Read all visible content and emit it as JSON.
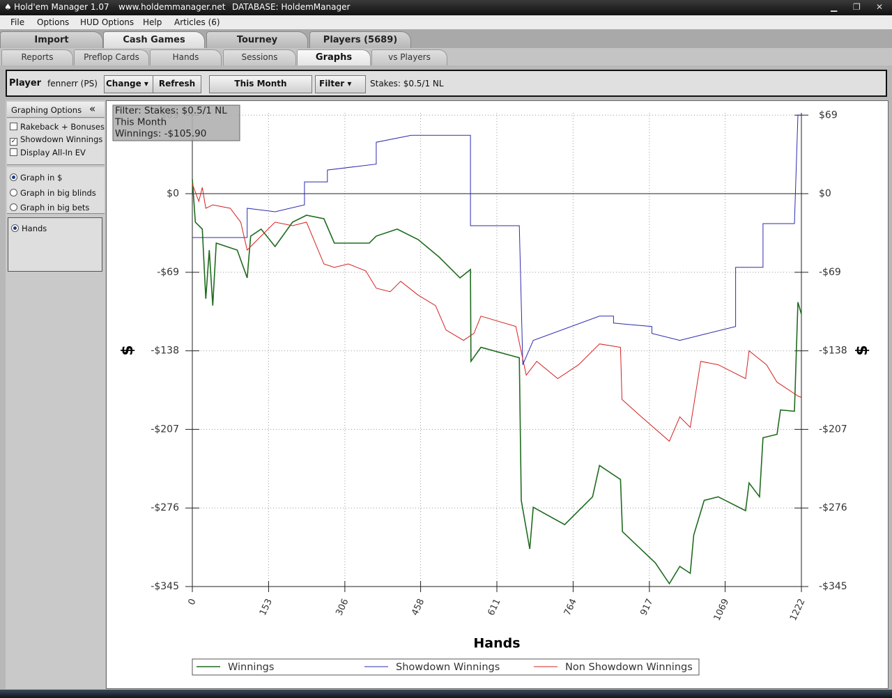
{
  "app": {
    "title": "Hold'em Manager 1.07",
    "website": "www.holdemmanager.net",
    "database": "DATABASE: HoldemManager",
    "menu": [
      "File",
      "Options",
      "HUD Options",
      "Help",
      "Articles (6)"
    ],
    "tabs": [
      "Import",
      "Cash Games",
      "Tourney",
      "Players (5689)"
    ],
    "subtabs": [
      "Reports",
      "Preflop Cards",
      "Hands",
      "Sessions",
      "Graphs",
      "vs Players"
    ],
    "toolbar": {
      "player_label": "Player",
      "player": "fennerr (PS)",
      "change": "Change",
      "refresh": "Refresh",
      "period": "This Month",
      "filter": "Filter",
      "stakes": "Stakes: $0.5/1 NL"
    },
    "sidebar": {
      "title": "Graphing Options",
      "checkboxes": [
        {
          "label": "Rakeback + Bonuses",
          "checked": false
        },
        {
          "label": "Showdown Winnings",
          "checked": true
        },
        {
          "label": "Display All-In EV",
          "checked": false
        }
      ],
      "units": [
        {
          "label": "Graph in $",
          "checked": true
        },
        {
          "label": "Graph in big blinds",
          "checked": false
        },
        {
          "label": "Graph in big bets",
          "checked": false
        }
      ],
      "axis": [
        {
          "label": "Hands",
          "checked": true
        }
      ]
    }
  },
  "chart_data": {
    "type": "line",
    "x_label": "Hands",
    "y_label": "$",
    "annotations": [
      "Filter: Stakes: $0.5/1 NL",
      "This Month",
      "Winnings: -$105.90"
    ],
    "xlim": [
      0,
      1222
    ],
    "xticks": [
      0,
      153,
      306,
      458,
      611,
      764,
      917,
      1069,
      1222
    ],
    "ylim": [
      -345,
      71
    ],
    "yticks": [
      {
        "value": 69,
        "label": "$69"
      },
      {
        "value": 0,
        "label": "$0"
      },
      {
        "value": -69,
        "label": "-$69"
      },
      {
        "value": -138,
        "label": "-$138"
      },
      {
        "value": -207,
        "label": "-$207"
      },
      {
        "value": -276,
        "label": "-$276"
      },
      {
        "value": -345,
        "label": "-$345"
      }
    ],
    "grid": true,
    "series": [
      {
        "name": "Winnings",
        "color": "#1f6b1f",
        "x": [
          0,
          6,
          20,
          27,
          34,
          41,
          48,
          90,
          110,
          117,
          138,
          166,
          201,
          229,
          264,
          285,
          355,
          369,
          411,
          453,
          495,
          537,
          558,
          559,
          579,
          656,
          660,
          677,
          684,
          747,
          803,
          817,
          859,
          863,
          929,
          957,
          978,
          999,
          1006,
          1027,
          1055,
          1110,
          1117,
          1138,
          1145,
          1173,
          1180,
          1208,
          1215,
          1222
        ],
        "values": [
          12.8,
          -25,
          -31.1,
          -92.2,
          -49.5,
          -98.3,
          -43.4,
          -49.5,
          -73.9,
          -37.2,
          -31.1,
          -46.4,
          -25,
          -18.9,
          -22,
          -43.4,
          -43.4,
          -37.2,
          -31.1,
          -40.3,
          -55.6,
          -73.9,
          -66.6,
          -147.2,
          -134.9,
          -144.1,
          -269.3,
          -312,
          -275.4,
          -290.6,
          -266.2,
          -238.7,
          -251,
          -296.8,
          -324.2,
          -342.5,
          -327.3,
          -333.4,
          -299.8,
          -269.3,
          -266.2,
          -278.4,
          -254,
          -266.2,
          -214.3,
          -211.3,
          -189.9,
          -191.1,
          -95.3,
          -105.9
        ]
      },
      {
        "name": "Showdown Winnings",
        "color": "#2b2bb0",
        "x": [
          0,
          110,
          110,
          166,
          225,
          225,
          271,
          271,
          327,
          369,
          369,
          439,
          558,
          558,
          656,
          663,
          684,
          817,
          845,
          845,
          922,
          922,
          978,
          1034,
          1090,
          1090,
          1145,
          1145,
          1208,
          1215,
          1222
        ],
        "values": [
          -38.5,
          -38.5,
          -12.8,
          -15.9,
          -9.8,
          10.4,
          10.4,
          20.8,
          23.8,
          26,
          45.2,
          51.3,
          51.3,
          -28.1,
          -28.1,
          -150.2,
          -128.8,
          -107.5,
          -107.5,
          -113.6,
          -116.6,
          -122.7,
          -128.8,
          -122.7,
          -116.6,
          -64.7,
          -64.7,
          -26.3,
          -26.3,
          69,
          69
        ]
      },
      {
        "name": "Non Showdown Winnings",
        "color": "#d42020",
        "x": [
          0,
          13,
          20,
          27,
          41,
          76,
          97,
          110,
          131,
          166,
          201,
          229,
          264,
          285,
          313,
          348,
          369,
          397,
          418,
          453,
          488,
          509,
          544,
          565,
          579,
          649,
          670,
          691,
          733,
          775,
          817,
          859,
          862,
          901,
          957,
          978,
          999,
          1020,
          1055,
          1110,
          1117,
          1152,
          1173,
          1215,
          1222
        ],
        "values": [
          8.5,
          -6.7,
          5.5,
          -12.8,
          -9.8,
          -12.8,
          -25,
          -49.5,
          -40.3,
          -25,
          -28.1,
          -25,
          -61.7,
          -64.7,
          -61.7,
          -67.8,
          -83,
          -86.1,
          -76.9,
          -89.1,
          -98.3,
          -119.7,
          -128.8,
          -122.7,
          -107.5,
          -116.6,
          -159.4,
          -147.2,
          -162.4,
          -150.2,
          -131.9,
          -134.9,
          -180.7,
          -196,
          -217.4,
          -196,
          -205.2,
          -147.2,
          -150.2,
          -162.4,
          -138,
          -150.2,
          -165.5,
          -177.7,
          -178.9
        ]
      }
    ]
  }
}
